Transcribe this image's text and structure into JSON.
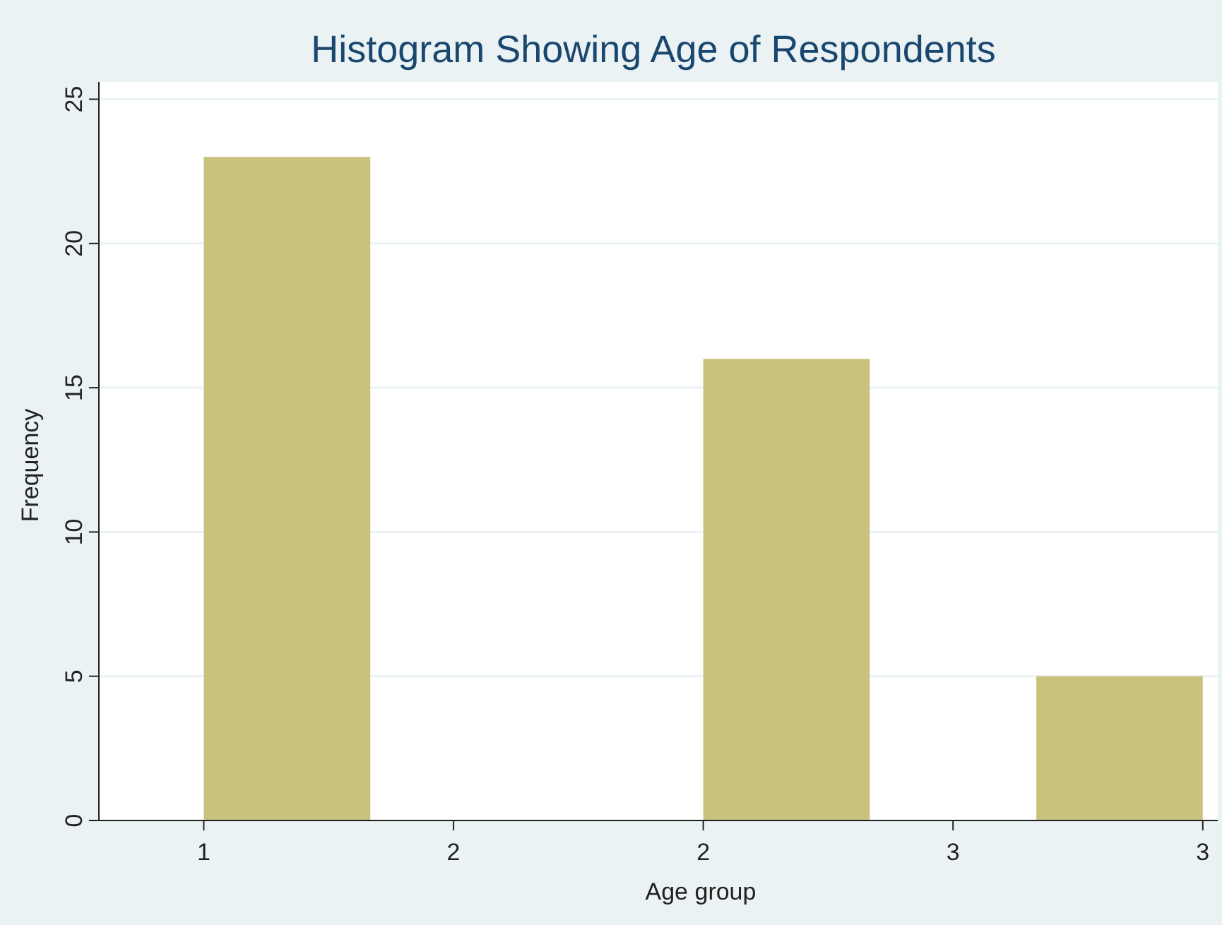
{
  "chart_data": {
    "type": "histogram",
    "title": "Histogram Showing Age of Respondents",
    "xlabel": "Age group",
    "ylabel": "Frequency",
    "bins": [
      1,
      1.3333,
      1.6667,
      2,
      2.3333,
      2.6667,
      3
    ],
    "values": [
      23,
      0,
      0,
      16,
      0,
      5
    ],
    "color": "#c9c17e",
    "xlim": [
      0.79,
      3.03
    ],
    "xticks": [
      1,
      {
        "value": 1.5,
        "label": "2"
      },
      2,
      {
        "value": 2.5,
        "label": "3"
      },
      3
    ],
    "ylim": [
      0,
      25.6
    ],
    "yticks": [
      0,
      5,
      10,
      15,
      20,
      25
    ],
    "grid": "y"
  }
}
